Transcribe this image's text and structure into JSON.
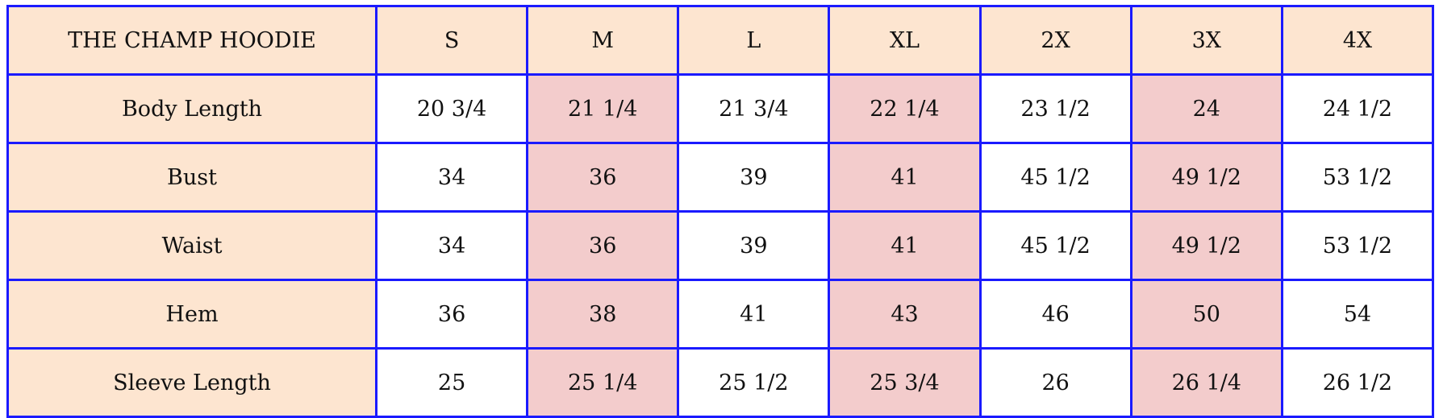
{
  "title": "THE CHAMP HOODIE",
  "sizes": [
    "S",
    "M",
    "L",
    "XL",
    "2X",
    "3X",
    "4X"
  ],
  "rows": [
    {
      "label": "Body Length",
      "values": [
        "20 3/4",
        "21 1/4",
        "21 3/4",
        "22 1/4",
        "23 1/2",
        "24",
        "24 1/2"
      ]
    },
    {
      "label": "Bust",
      "values": [
        "34",
        "36",
        "39",
        "41",
        "45 1/2",
        "49 1/2",
        "53 1/2"
      ]
    },
    {
      "label": "Waist",
      "values": [
        "34",
        "36",
        "39",
        "41",
        "45 1/2",
        "49 1/2",
        "53 1/2"
      ]
    },
    {
      "label": "Hem",
      "values": [
        "36",
        "38",
        "41",
        "43",
        "46",
        "50",
        "54"
      ]
    },
    {
      "label": "Sleeve Length",
      "values": [
        "25",
        "25 1/4",
        "25 1/2",
        "25 3/4",
        "26",
        "26 1/4",
        "26 1/2"
      ]
    }
  ],
  "colors": {
    "header_bg": "#fde5d0",
    "highlight_bg": "#f3cccc",
    "border": "#1a1aff"
  }
}
